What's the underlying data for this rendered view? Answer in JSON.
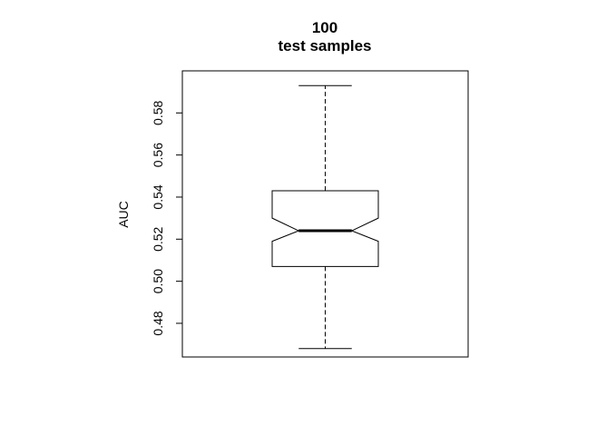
{
  "chart_data": {
    "type": "boxplot",
    "title": [
      "100",
      "test samples"
    ],
    "ylabel": "AUC",
    "xlabel": "",
    "ylim": [
      0.464,
      0.6
    ],
    "yticks": [
      0.48,
      0.5,
      0.52,
      0.54,
      0.56,
      0.58
    ],
    "ytick_labels": [
      "0.48",
      "0.50",
      "0.52",
      "0.54",
      "0.56",
      "0.58"
    ],
    "notch": true,
    "grid": false,
    "box": {
      "whisker_low": 0.468,
      "q1": 0.507,
      "median": 0.524,
      "q3": 0.543,
      "whisker_high": 0.593,
      "notch_low": 0.519,
      "notch_high": 0.53
    }
  }
}
